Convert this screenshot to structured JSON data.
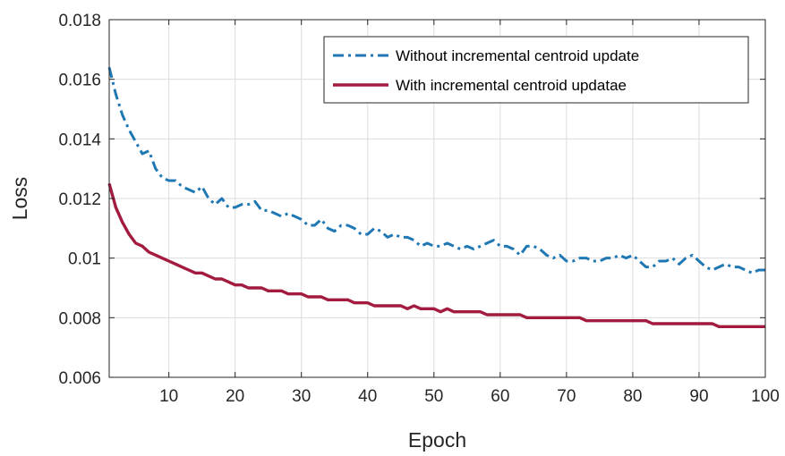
{
  "chart_data": {
    "type": "line",
    "xlabel": "Epoch",
    "ylabel": "Loss",
    "xlim": [
      1,
      100
    ],
    "ylim": [
      0.006,
      0.018
    ],
    "xticks": [
      10,
      20,
      30,
      40,
      50,
      60,
      70,
      80,
      90,
      100
    ],
    "xtick_labels": [
      "10",
      "20",
      "30",
      "40",
      "50",
      "60",
      "70",
      "80",
      "90",
      "100"
    ],
    "yticks": [
      0.006,
      0.008,
      0.01,
      0.012,
      0.014,
      0.016,
      0.018
    ],
    "ytick_labels": [
      "0.006",
      "0.008",
      "0.01",
      "0.012",
      "0.014",
      "0.016",
      "0.018"
    ],
    "grid": true,
    "legend_position": "top-right",
    "series": [
      {
        "name": "Without incremental centroid update",
        "color": "#1f78b4",
        "line_style": "dash-dot",
        "x": [
          1,
          2,
          3,
          4,
          5,
          6,
          7,
          8,
          9,
          10,
          11,
          12,
          13,
          14,
          15,
          16,
          17,
          18,
          19,
          20,
          21,
          22,
          23,
          24,
          25,
          26,
          27,
          28,
          29,
          30,
          31,
          32,
          33,
          34,
          35,
          36,
          37,
          38,
          39,
          40,
          41,
          42,
          43,
          44,
          45,
          46,
          47,
          48,
          49,
          50,
          51,
          52,
          53,
          54,
          55,
          56,
          57,
          58,
          59,
          60,
          61,
          62,
          63,
          64,
          65,
          66,
          67,
          68,
          69,
          70,
          71,
          72,
          73,
          74,
          75,
          76,
          77,
          78,
          79,
          80,
          81,
          82,
          83,
          84,
          85,
          86,
          87,
          88,
          89,
          90,
          91,
          92,
          93,
          94,
          95,
          96,
          97,
          98,
          99,
          100
        ],
        "y": [
          0.0164,
          0.0155,
          0.0148,
          0.0143,
          0.0139,
          0.0135,
          0.0136,
          0.013,
          0.0127,
          0.0126,
          0.0126,
          0.0124,
          0.0123,
          0.0122,
          0.0124,
          0.012,
          0.0118,
          0.012,
          0.0117,
          0.0117,
          0.0118,
          0.0118,
          0.0119,
          0.0116,
          0.0116,
          0.0115,
          0.0114,
          0.0115,
          0.0114,
          0.0113,
          0.0111,
          0.0111,
          0.0113,
          0.011,
          0.0109,
          0.0111,
          0.0111,
          0.011,
          0.0108,
          0.0108,
          0.011,
          0.0109,
          0.0107,
          0.0108,
          0.0107,
          0.0107,
          0.0106,
          0.0104,
          0.0105,
          0.0104,
          0.0104,
          0.0105,
          0.0104,
          0.0103,
          0.0104,
          0.0103,
          0.0104,
          0.0105,
          0.0106,
          0.0104,
          0.0104,
          0.0103,
          0.0101,
          0.0104,
          0.0104,
          0.0103,
          0.0101,
          0.01,
          0.0101,
          0.0099,
          0.0099,
          0.01,
          0.01,
          0.0099,
          0.0099,
          0.01,
          0.01,
          0.0101,
          0.01,
          0.0101,
          0.0099,
          0.0097,
          0.0097,
          0.0099,
          0.0099,
          0.01,
          0.0098,
          0.01,
          0.0101,
          0.0099,
          0.0097,
          0.0096,
          0.0097,
          0.0098,
          0.0097,
          0.0097,
          0.0096,
          0.0095,
          0.0096,
          0.0096
        ]
      },
      {
        "name": "With incremental centroid updatae",
        "color": "#a31b3e",
        "line_style": "solid",
        "x": [
          1,
          2,
          3,
          4,
          5,
          6,
          7,
          8,
          9,
          10,
          11,
          12,
          13,
          14,
          15,
          16,
          17,
          18,
          19,
          20,
          21,
          22,
          23,
          24,
          25,
          26,
          27,
          28,
          29,
          30,
          31,
          32,
          33,
          34,
          35,
          36,
          37,
          38,
          39,
          40,
          41,
          42,
          43,
          44,
          45,
          46,
          47,
          48,
          49,
          50,
          51,
          52,
          53,
          54,
          55,
          56,
          57,
          58,
          59,
          60,
          61,
          62,
          63,
          64,
          65,
          66,
          67,
          68,
          69,
          70,
          71,
          72,
          73,
          74,
          75,
          76,
          77,
          78,
          79,
          80,
          81,
          82,
          83,
          84,
          85,
          86,
          87,
          88,
          89,
          90,
          91,
          92,
          93,
          94,
          95,
          96,
          97,
          98,
          99,
          100
        ],
        "y": [
          0.0125,
          0.0117,
          0.0112,
          0.0108,
          0.0105,
          0.0104,
          0.0102,
          0.0101,
          0.01,
          0.0099,
          0.0098,
          0.0097,
          0.0096,
          0.0095,
          0.0095,
          0.0094,
          0.0093,
          0.0093,
          0.0092,
          0.0091,
          0.0091,
          0.009,
          0.009,
          0.009,
          0.0089,
          0.0089,
          0.0089,
          0.0088,
          0.0088,
          0.0088,
          0.0087,
          0.0087,
          0.0087,
          0.0086,
          0.0086,
          0.0086,
          0.0086,
          0.0085,
          0.0085,
          0.0085,
          0.0084,
          0.0084,
          0.0084,
          0.0084,
          0.0084,
          0.0083,
          0.0084,
          0.0083,
          0.0083,
          0.0083,
          0.0082,
          0.0083,
          0.0082,
          0.0082,
          0.0082,
          0.0082,
          0.0082,
          0.0081,
          0.0081,
          0.0081,
          0.0081,
          0.0081,
          0.0081,
          0.008,
          0.008,
          0.008,
          0.008,
          0.008,
          0.008,
          0.008,
          0.008,
          0.008,
          0.0079,
          0.0079,
          0.0079,
          0.0079,
          0.0079,
          0.0079,
          0.0079,
          0.0079,
          0.0079,
          0.0079,
          0.0078,
          0.0078,
          0.0078,
          0.0078,
          0.0078,
          0.0078,
          0.0078,
          0.0078,
          0.0078,
          0.0078,
          0.0077,
          0.0077,
          0.0077,
          0.0077,
          0.0077,
          0.0077,
          0.0077,
          0.0077
        ]
      }
    ]
  }
}
